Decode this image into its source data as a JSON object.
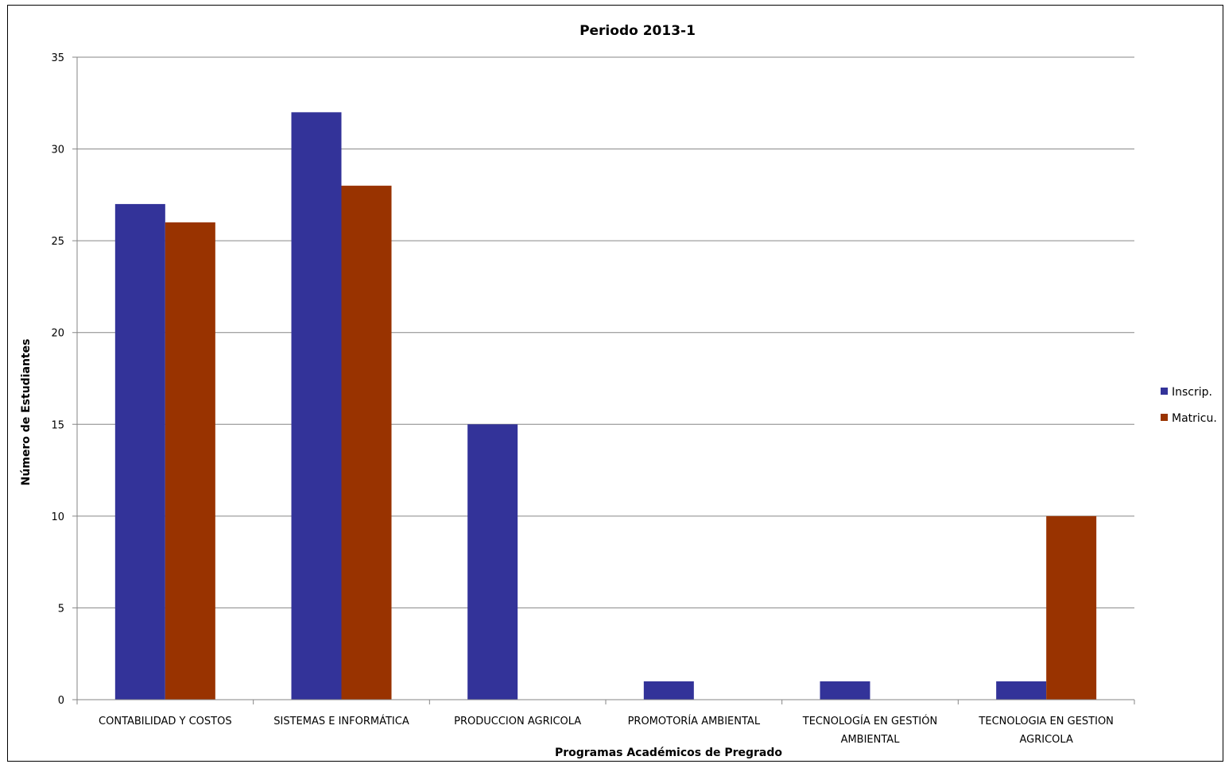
{
  "chart_data": {
    "type": "bar",
    "title": "Periodo 2013-1",
    "xlabel": "Programas Académicos  de Pregrado",
    "ylabel": "Número de Estudiantes",
    "ylim": [
      0,
      35
    ],
    "yticks": [
      0,
      5,
      10,
      15,
      20,
      25,
      30,
      35
    ],
    "grid": true,
    "legend_position": "right",
    "categories": [
      [
        "CONTABILIDAD Y COSTOS"
      ],
      [
        "SISTEMAS E INFORMÁTICA"
      ],
      [
        "PRODUCCION AGRICOLA"
      ],
      [
        "PROMOTORÍA AMBIENTAL"
      ],
      [
        "TECNOLOGÍA EN GESTIÓN",
        "AMBIENTAL"
      ],
      [
        "TECNOLOGIA EN GESTION",
        "AGRICOLA"
      ]
    ],
    "series": [
      {
        "name": "Inscrip.",
        "color": "#333399",
        "values": [
          27,
          32,
          15,
          1,
          1,
          1
        ]
      },
      {
        "name": "Matricu.",
        "color": "#993300",
        "values": [
          26,
          28,
          0,
          0,
          0,
          10
        ]
      }
    ]
  }
}
